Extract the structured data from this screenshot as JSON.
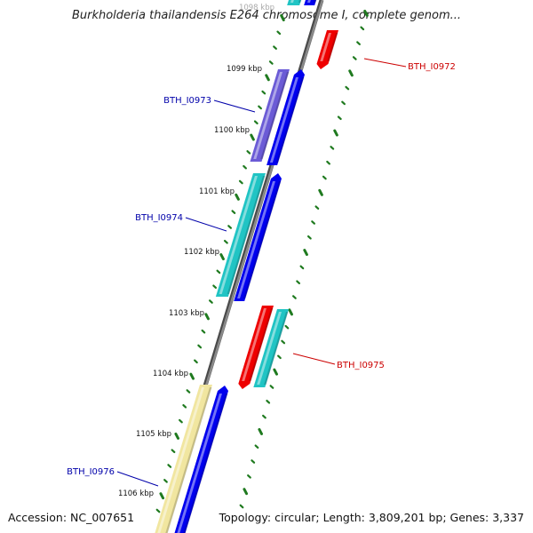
{
  "header": {
    "title": "Burkholderia thailandensis E264 chromosome I, complete genom..."
  },
  "footer": {
    "accession": "Accession: NC_007651",
    "topology": "Topology: circular; Length: 3,809,201 bp; Genes: 3,337"
  },
  "colors": {
    "backbone": "#8a8a8a",
    "tick": "#1f7a1f",
    "forward_gene": "#0000ee",
    "reverse_gene": "#ee0000",
    "cds_feature": "#20c4c4",
    "purple_feature": "#6b5bd6",
    "yellow_feature": "#f1e6a0",
    "label_forward": "#0000aa",
    "label_reverse": "#cc0000"
  },
  "scale_labels": [
    "1098 kbp",
    "1099 kbp",
    "1100 kbp",
    "1101 kbp",
    "1102 kbp",
    "1103 kbp",
    "1104 kbp",
    "1105 kbp",
    "1106 kbp"
  ],
  "gene_labels": [
    {
      "text": "BTH_I0972",
      "strand": "reverse"
    },
    {
      "text": "BTH_I0973",
      "strand": "forward"
    },
    {
      "text": "BTH_I0974",
      "strand": "forward"
    },
    {
      "text": "BTH_I0975",
      "strand": "reverse"
    },
    {
      "text": "BTH_I0976",
      "strand": "forward"
    }
  ]
}
